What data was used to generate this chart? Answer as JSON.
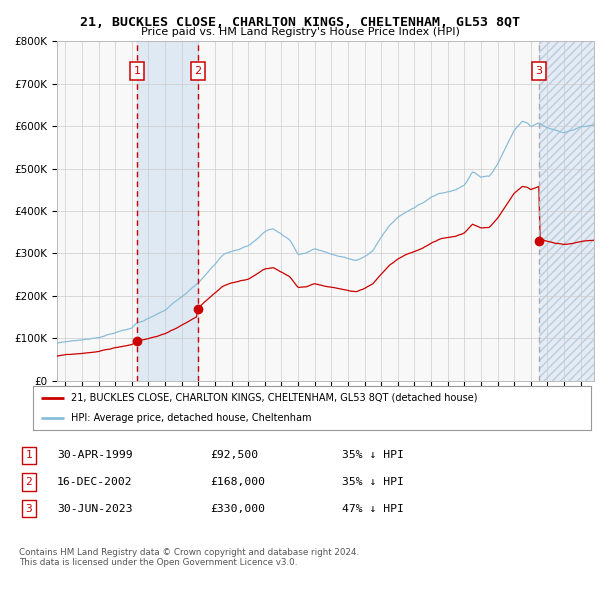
{
  "title": "21, BUCKLES CLOSE, CHARLTON KINGS, CHELTENHAM, GL53 8QT",
  "subtitle": "Price paid vs. HM Land Registry's House Price Index (HPI)",
  "ylim": [
    0,
    800000
  ],
  "yticks": [
    0,
    100000,
    200000,
    300000,
    400000,
    500000,
    600000,
    700000,
    800000
  ],
  "ytick_labels": [
    "£0",
    "£100K",
    "£200K",
    "£300K",
    "£400K",
    "£500K",
    "£600K",
    "£700K",
    "£800K"
  ],
  "xlim_start": 1994.5,
  "xlim_end": 2026.8,
  "xticks": [
    1995,
    1996,
    1997,
    1998,
    1999,
    2000,
    2001,
    2002,
    2003,
    2004,
    2005,
    2006,
    2007,
    2008,
    2009,
    2010,
    2011,
    2012,
    2013,
    2014,
    2015,
    2016,
    2017,
    2018,
    2019,
    2020,
    2021,
    2022,
    2023,
    2024,
    2025,
    2026
  ],
  "sale1_date": 1999.33,
  "sale1_price": 92500,
  "sale1_label": "1",
  "sale2_date": 2002.96,
  "sale2_price": 168000,
  "sale2_label": "2",
  "sale3_date": 2023.5,
  "sale3_price": 330000,
  "sale3_label": "3",
  "sale_color": "#cc0000",
  "hpi_color": "#8bbdd9",
  "background_color": "#f8f8f8",
  "grid_color": "#cccccc",
  "legend_line1": "21, BUCKLES CLOSE, CHARLTON KINGS, CHELTENHAM, GL53 8QT (detached house)",
  "legend_line2": "HPI: Average price, detached house, Cheltenham",
  "table_data": [
    [
      "1",
      "30-APR-1999",
      "£92,500",
      "35% ↓ HPI"
    ],
    [
      "2",
      "16-DEC-2002",
      "£168,000",
      "35% ↓ HPI"
    ],
    [
      "3",
      "30-JUN-2023",
      "£330,000",
      "47% ↓ HPI"
    ]
  ],
  "footer": "Contains HM Land Registry data © Crown copyright and database right 2024.\nThis data is licensed under the Open Government Licence v3.0."
}
